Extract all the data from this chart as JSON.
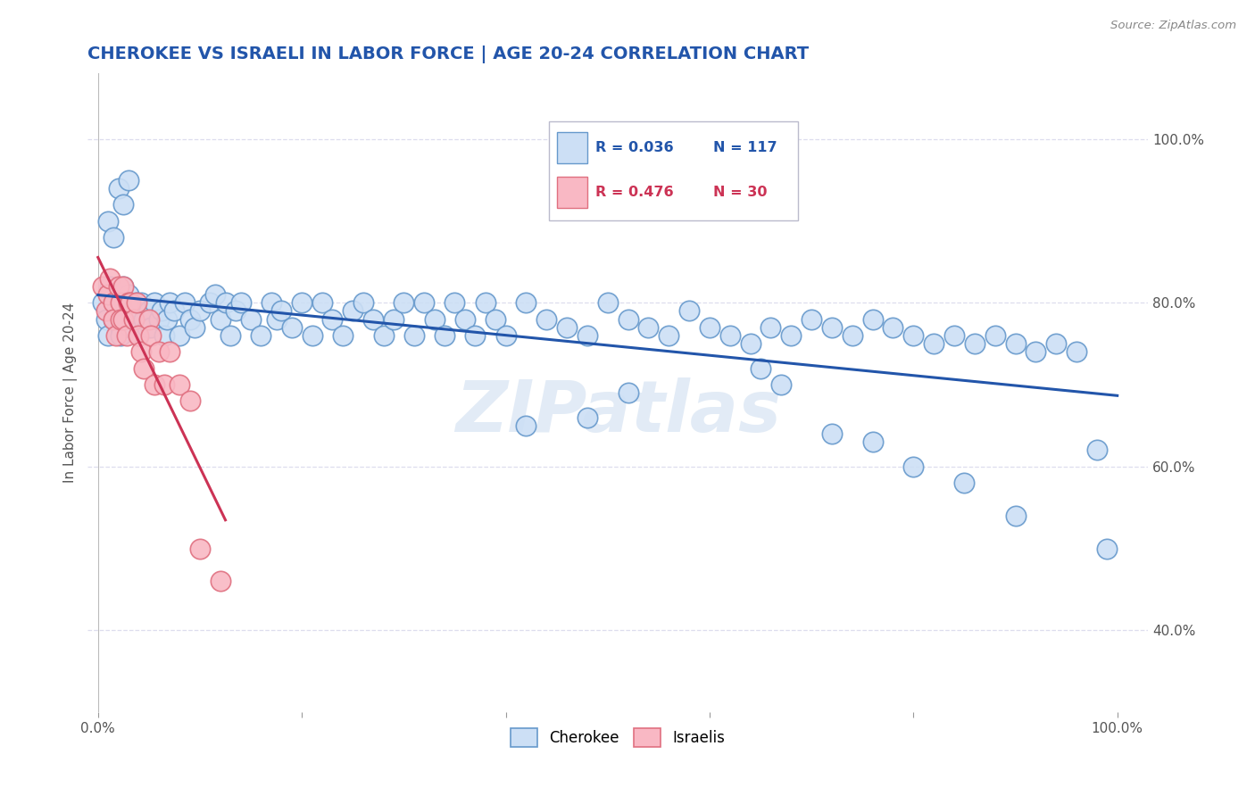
{
  "title": "CHEROKEE VS ISRAELI IN LABOR FORCE | AGE 20-24 CORRELATION CHART",
  "source": "Source: ZipAtlas.com",
  "ylabel": "In Labor Force | Age 20-24",
  "xlim": [
    -0.01,
    1.03
  ],
  "ylim": [
    0.3,
    1.08
  ],
  "x_ticks": [
    0.0,
    0.2,
    0.4,
    0.6,
    0.8,
    1.0
  ],
  "x_tick_labels": [
    "0.0%",
    "",
    "",
    "",
    "",
    "100.0%"
  ],
  "y_tick_vals_right": [
    0.4,
    0.6,
    0.8,
    1.0
  ],
  "y_tick_labels_right": [
    "40.0%",
    "60.0%",
    "80.0%",
    "100.0%"
  ],
  "blue_fill": "#ccdff5",
  "blue_edge": "#6699cc",
  "pink_fill": "#f9b8c4",
  "pink_edge": "#e07080",
  "blue_line_color": "#2255aa",
  "pink_line_color": "#cc3355",
  "background_color": "#ffffff",
  "grid_color": "#ddddee",
  "title_color": "#2255aa",
  "watermark_color": "#d0dff0",
  "legend_R_blue": "R = 0.036",
  "legend_N_blue": "N = 117",
  "legend_R_pink": "R = 0.476",
  "legend_N_pink": "N = 30",
  "cherokee_x": [
    0.005,
    0.008,
    0.01,
    0.012,
    0.015,
    0.015,
    0.018,
    0.02,
    0.02,
    0.022,
    0.022,
    0.025,
    0.025,
    0.028,
    0.03,
    0.03,
    0.032,
    0.035,
    0.038,
    0.04,
    0.04,
    0.042,
    0.045,
    0.048,
    0.05,
    0.052,
    0.055,
    0.06,
    0.062,
    0.065,
    0.068,
    0.07,
    0.075,
    0.08,
    0.085,
    0.09,
    0.095,
    0.1,
    0.11,
    0.115,
    0.12,
    0.125,
    0.13,
    0.135,
    0.14,
    0.15,
    0.16,
    0.17,
    0.175,
    0.18,
    0.19,
    0.2,
    0.21,
    0.22,
    0.23,
    0.24,
    0.25,
    0.26,
    0.27,
    0.28,
    0.29,
    0.3,
    0.31,
    0.32,
    0.33,
    0.34,
    0.35,
    0.36,
    0.37,
    0.38,
    0.39,
    0.4,
    0.42,
    0.44,
    0.46,
    0.48,
    0.5,
    0.52,
    0.54,
    0.56,
    0.58,
    0.6,
    0.62,
    0.64,
    0.66,
    0.68,
    0.7,
    0.72,
    0.74,
    0.76,
    0.78,
    0.8,
    0.82,
    0.84,
    0.86,
    0.88,
    0.9,
    0.92,
    0.94,
    0.96,
    0.98,
    0.99,
    0.65,
    0.67,
    0.52,
    0.48,
    0.42,
    0.72,
    0.76,
    0.8,
    0.85,
    0.9,
    0.01,
    0.015,
    0.02,
    0.025,
    0.03
  ],
  "cherokee_y": [
    0.8,
    0.78,
    0.76,
    0.82,
    0.8,
    0.78,
    0.8,
    0.81,
    0.79,
    0.77,
    0.76,
    0.82,
    0.8,
    0.78,
    0.79,
    0.81,
    0.77,
    0.78,
    0.8,
    0.79,
    0.76,
    0.8,
    0.78,
    0.77,
    0.79,
    0.77,
    0.8,
    0.78,
    0.79,
    0.76,
    0.78,
    0.8,
    0.79,
    0.76,
    0.8,
    0.78,
    0.77,
    0.79,
    0.8,
    0.81,
    0.78,
    0.8,
    0.76,
    0.79,
    0.8,
    0.78,
    0.76,
    0.8,
    0.78,
    0.79,
    0.77,
    0.8,
    0.76,
    0.8,
    0.78,
    0.76,
    0.79,
    0.8,
    0.78,
    0.76,
    0.78,
    0.8,
    0.76,
    0.8,
    0.78,
    0.76,
    0.8,
    0.78,
    0.76,
    0.8,
    0.78,
    0.76,
    0.8,
    0.78,
    0.77,
    0.76,
    0.8,
    0.78,
    0.77,
    0.76,
    0.79,
    0.77,
    0.76,
    0.75,
    0.77,
    0.76,
    0.78,
    0.77,
    0.76,
    0.78,
    0.77,
    0.76,
    0.75,
    0.76,
    0.75,
    0.76,
    0.75,
    0.74,
    0.75,
    0.74,
    0.62,
    0.5,
    0.72,
    0.7,
    0.69,
    0.66,
    0.65,
    0.64,
    0.63,
    0.6,
    0.58,
    0.54,
    0.9,
    0.88,
    0.94,
    0.92,
    0.95
  ],
  "israeli_x": [
    0.005,
    0.008,
    0.01,
    0.012,
    0.015,
    0.015,
    0.018,
    0.02,
    0.022,
    0.022,
    0.025,
    0.025,
    0.028,
    0.03,
    0.032,
    0.035,
    0.038,
    0.04,
    0.042,
    0.045,
    0.05,
    0.052,
    0.055,
    0.06,
    0.065,
    0.07,
    0.08,
    0.09,
    0.1,
    0.12
  ],
  "israeli_y": [
    0.82,
    0.79,
    0.81,
    0.83,
    0.8,
    0.78,
    0.76,
    0.82,
    0.8,
    0.78,
    0.82,
    0.78,
    0.76,
    0.8,
    0.8,
    0.78,
    0.8,
    0.76,
    0.74,
    0.72,
    0.78,
    0.76,
    0.7,
    0.74,
    0.7,
    0.74,
    0.7,
    0.68,
    0.5,
    0.46
  ]
}
